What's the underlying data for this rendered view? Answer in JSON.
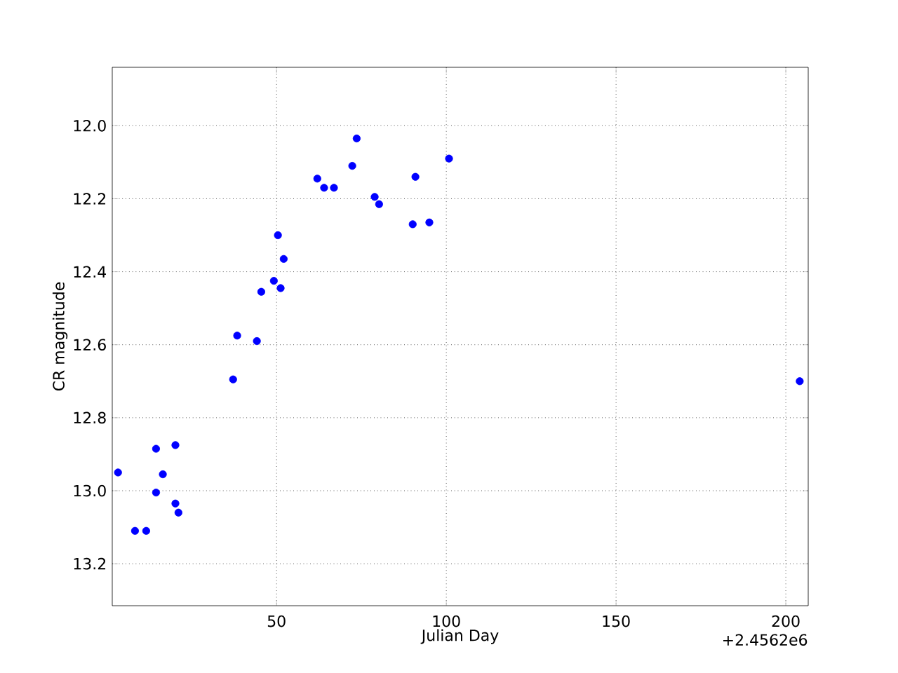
{
  "chart_data": {
    "type": "scatter",
    "xlabel": "Julian Day",
    "ylabel": "CR magnitude",
    "annotations": [
      "+2.4562e6"
    ],
    "x": [
      3.3,
      8.3,
      11.6,
      14.5,
      14.5,
      16.5,
      20.2,
      20.2,
      21.1,
      37.2,
      38.4,
      44.2,
      45.5,
      49.2,
      50.4,
      51.2,
      52.1,
      62.0,
      64.0,
      66.9,
      72.3,
      73.6,
      78.9,
      80.2,
      90.1,
      90.9,
      95.0,
      100.8,
      204.1
    ],
    "series": [
      {
        "color": "#0000ff",
        "values": [
          12.95,
          13.11,
          13.11,
          12.885,
          13.005,
          12.955,
          12.875,
          13.035,
          13.06,
          12.695,
          12.575,
          12.59,
          12.455,
          12.425,
          12.3,
          12.445,
          12.365,
          12.145,
          12.17,
          12.17,
          12.11,
          12.035,
          12.195,
          12.215,
          12.27,
          12.14,
          12.265,
          12.09,
          12.7
        ]
      }
    ],
    "xlim": [
      1.6,
      206.6
    ],
    "ylim": [
      13.315,
      11.84
    ],
    "xticks": [
      50,
      100,
      150,
      200
    ],
    "yticks": [
      {
        "value": 12.0,
        "label": "12.0"
      },
      {
        "value": 12.2,
        "label": "12.2"
      },
      {
        "value": 12.4,
        "label": "12.4"
      },
      {
        "value": 12.6,
        "label": "12.6"
      },
      {
        "value": 12.8,
        "label": "12.8"
      },
      {
        "value": 13.0,
        "label": "13.0"
      },
      {
        "value": 13.2,
        "label": "13.2"
      }
    ],
    "grid": true,
    "marker": "circle"
  }
}
